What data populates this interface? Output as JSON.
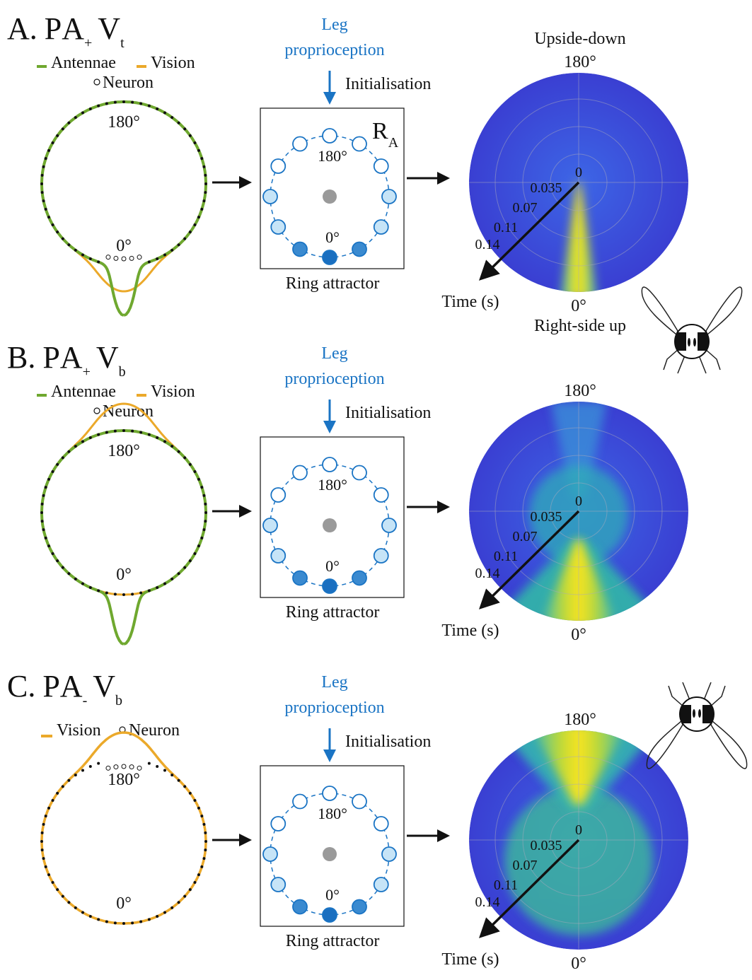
{
  "panels": [
    {
      "letter": "A.",
      "p": "P",
      "a": "A",
      "a_sub": "+",
      "v": "V",
      "v_sub": "t",
      "legend": [
        "Antennae",
        "Vision",
        "Neuron"
      ],
      "ring": {
        "top": "180°",
        "bottom": "0°"
      },
      "input": [
        "Leg",
        "proprioception"
      ],
      "init": "Initialisation",
      "attractor": {
        "name": "R",
        "name_sub": "A",
        "top": "180°",
        "bottom": "0°",
        "label": "Ring attractor"
      },
      "polar": {
        "top_title": "Upside-down",
        "top": "180°",
        "bottom": "0°",
        "bottom_title": "Right-side up",
        "radii": [
          "0",
          "0.035",
          "0.07",
          "0.11",
          "0.14"
        ],
        "axis": "Time (s)"
      }
    },
    {
      "letter": "B.",
      "p": "P",
      "a": "A",
      "a_sub": "+",
      "v": "V",
      "v_sub": "b",
      "legend": [
        "Antennae",
        "Vision",
        "Neuron"
      ],
      "ring": {
        "top": "180°",
        "bottom": "0°"
      },
      "input": [
        "Leg",
        "proprioception"
      ],
      "init": "Initialisation",
      "attractor": {
        "top": "180°",
        "bottom": "0°",
        "label": "Ring attractor"
      },
      "polar": {
        "top": "180°",
        "bottom": "0°",
        "radii": [
          "0",
          "0.035",
          "0.07",
          "0.11",
          "0.14"
        ],
        "axis": "Time (s)"
      }
    },
    {
      "letter": "C.",
      "p": "P",
      "a": "A",
      "a_sub": "-",
      "v": "V",
      "v_sub": "b",
      "legend": [
        "Vision",
        "Neuron"
      ],
      "ring": {
        "top": "180°",
        "bottom": "0°"
      },
      "input": [
        "Leg",
        "proprioception"
      ],
      "init": "Initialisation",
      "attractor": {
        "top": "180°",
        "bottom": "0°",
        "label": "Ring attractor"
      },
      "polar": {
        "top": "180°",
        "bottom": "0°",
        "radii": [
          "0",
          "0.035",
          "0.07",
          "0.11",
          "0.14"
        ],
        "axis": "Time (s)"
      }
    }
  ]
}
